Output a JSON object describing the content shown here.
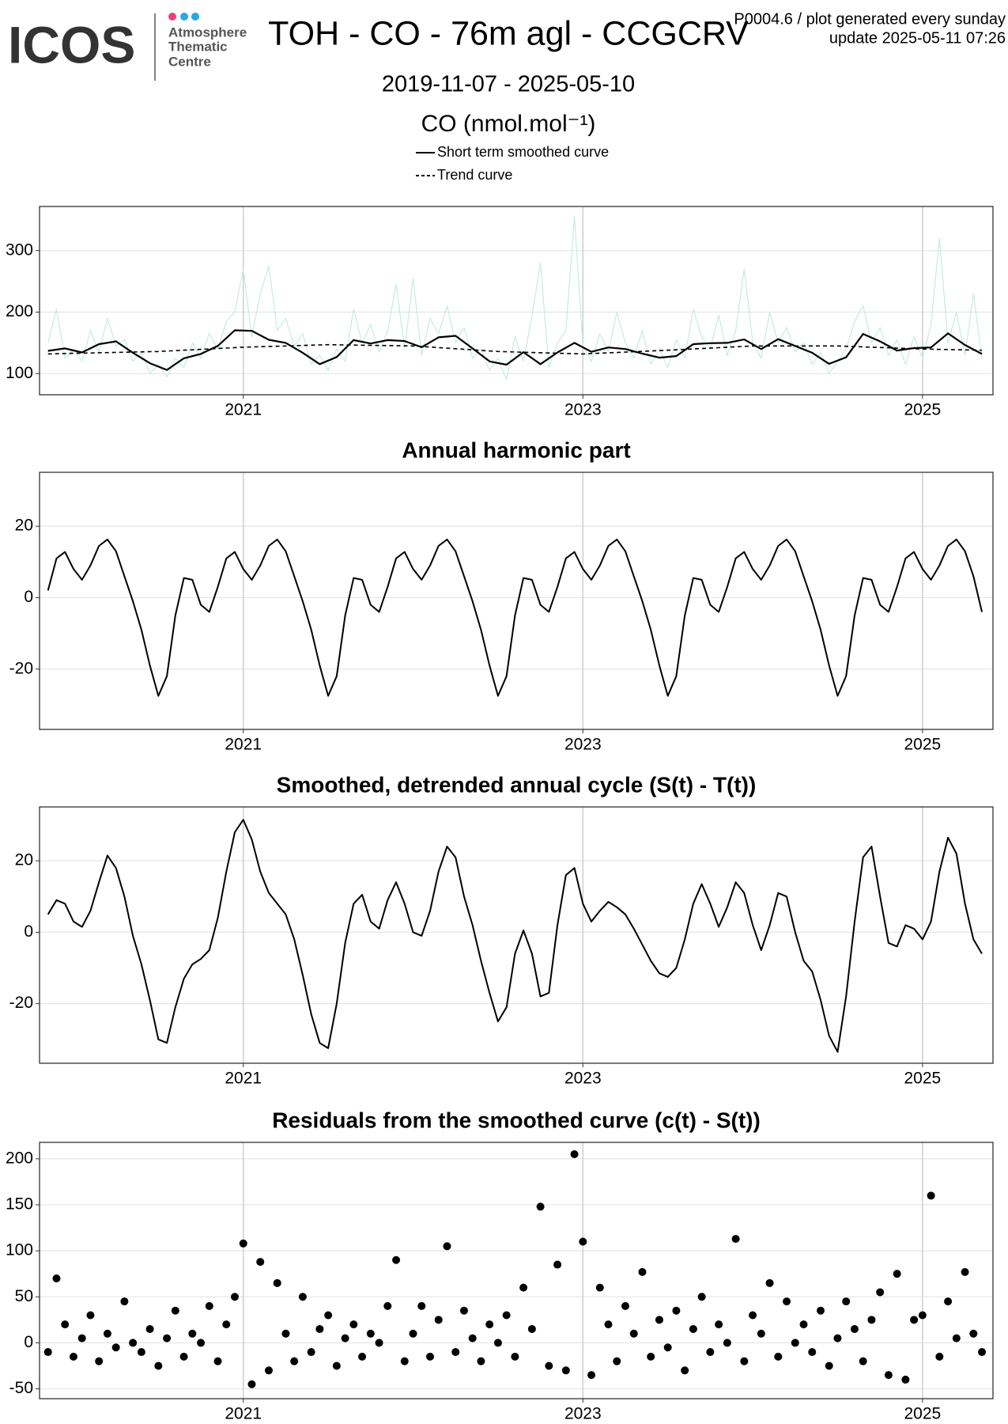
{
  "header": {
    "logo": "ICOS",
    "logo_lines": [
      "Atmosphere",
      "Thematic",
      "Centre"
    ],
    "title": "TOH - CO - 76m agl - CCGCRV",
    "note": "P0004.6 / plot generated every sunday",
    "update": "update  2025-05-11 07:26",
    "date_range": "2019-11-07 - 2025-05-10"
  },
  "chart_data": [
    {
      "type": "line",
      "ylabel": "CO (nmol.mol⁻¹)",
      "xlim": [
        2019.8,
        2025.415
      ],
      "xticks": [
        2021,
        2023,
        2025
      ],
      "ylim": [
        65.7,
        371.6
      ],
      "yticks": [
        100,
        200,
        300
      ],
      "grid": true,
      "series": [
        {
          "color": "#c6ebe4",
          "line_width": 1.2,
          "x": [
            2019.85,
            2019.9,
            2019.95,
            2020.0,
            2020.05,
            2020.1,
            2020.15,
            2020.2,
            2020.25,
            2020.3,
            2020.35,
            2020.4,
            2020.45,
            2020.5,
            2020.55,
            2020.6,
            2020.65,
            2020.7,
            2020.75,
            2020.8,
            2020.85,
            2020.9,
            2020.95,
            2021.0,
            2021.05,
            2021.1,
            2021.15,
            2021.2,
            2021.25,
            2021.3,
            2021.35,
            2021.4,
            2021.45,
            2021.5,
            2021.55,
            2021.6,
            2021.65,
            2021.7,
            2021.75,
            2021.8,
            2021.85,
            2021.9,
            2021.95,
            2022.0,
            2022.05,
            2022.1,
            2022.15,
            2022.2,
            2022.25,
            2022.3,
            2022.35,
            2022.4,
            2022.45,
            2022.5,
            2022.55,
            2022.6,
            2022.65,
            2022.7,
            2022.75,
            2022.8,
            2022.85,
            2022.9,
            2022.95,
            2023.0,
            2023.05,
            2023.1,
            2023.15,
            2023.2,
            2023.25,
            2023.3,
            2023.35,
            2023.4,
            2023.45,
            2023.5,
            2023.55,
            2023.6,
            2023.65,
            2023.7,
            2023.75,
            2023.8,
            2023.85,
            2023.9,
            2023.95,
            2024.0,
            2024.05,
            2024.1,
            2024.15,
            2024.2,
            2024.25,
            2024.3,
            2024.35,
            2024.4,
            2024.45,
            2024.5,
            2024.55,
            2024.6,
            2024.65,
            2024.7,
            2024.75,
            2024.8,
            2024.85,
            2024.9,
            2024.95,
            2025.0,
            2025.05,
            2025.1,
            2025.15,
            2025.2,
            2025.25,
            2025.3,
            2025.35
          ],
          "values": [
            150,
            205,
            125,
            140,
            120,
            170,
            135,
            190,
            145,
            155,
            120,
            135,
            100,
            115,
            95,
            125,
            110,
            150,
            125,
            165,
            140,
            185,
            200,
            270,
            160,
            230,
            275,
            170,
            190,
            145,
            165,
            115,
            130,
            105,
            140,
            120,
            205,
            150,
            180,
            135,
            170,
            245,
            140,
            255,
            130,
            190,
            165,
            210,
            150,
            175,
            125,
            140,
            105,
            125,
            90,
            160,
            120,
            195,
            280,
            110,
            150,
            170,
            355,
            145,
            120,
            165,
            135,
            200,
            150,
            125,
            170,
            115,
            140,
            110,
            155,
            125,
            205,
            160,
            140,
            195,
            130,
            170,
            270,
            150,
            125,
            200,
            150,
            175,
            135,
            150,
            115,
            135,
            100,
            120,
            140,
            185,
            210,
            150,
            175,
            130,
            155,
            115,
            160,
            125,
            180,
            320,
            150,
            200,
            130,
            230,
            125
          ]
        },
        {
          "name": "Short term smoothed curve",
          "color": "#000000",
          "line_width": 2.2,
          "x": [
            2019.85,
            2019.95,
            2020.05,
            2020.15,
            2020.25,
            2020.35,
            2020.45,
            2020.55,
            2020.65,
            2020.75,
            2020.85,
            2020.95,
            2021.05,
            2021.15,
            2021.25,
            2021.35,
            2021.45,
            2021.55,
            2021.65,
            2021.75,
            2021.85,
            2021.95,
            2022.05,
            2022.15,
            2022.25,
            2022.35,
            2022.45,
            2022.55,
            2022.65,
            2022.75,
            2022.85,
            2022.95,
            2023.05,
            2023.15,
            2023.25,
            2023.35,
            2023.45,
            2023.55,
            2023.65,
            2023.75,
            2023.85,
            2023.95,
            2024.05,
            2024.15,
            2024.25,
            2024.35,
            2024.45,
            2024.55,
            2024.65,
            2024.75,
            2024.85,
            2024.95,
            2025.05,
            2025.15,
            2025.25,
            2025.35
          ],
          "values": [
            137,
            141,
            134.5,
            148,
            152.5,
            134,
            117,
            106,
            125,
            132,
            145,
            170.5,
            169.5,
            155,
            150,
            134,
            115.5,
            127,
            154.5,
            149,
            154.5,
            153,
            143,
            159,
            161.5,
            141,
            120,
            114.5,
            135,
            115.5,
            134.5,
            150,
            135.5,
            142.5,
            140,
            132.5,
            126,
            128.5,
            148,
            149.5,
            150,
            155.5,
            140,
            156,
            145,
            134,
            116,
            126.5,
            164.5,
            152.5,
            137.5,
            141.5,
            142.5,
            165.5,
            146.5,
            132
          ]
        },
        {
          "name": "Trend curve",
          "color": "#000000",
          "line_width": 1.6,
          "line_style": "dashed",
          "x": [
            2019.85,
            2020.0,
            2020.5,
            2021.0,
            2021.5,
            2022.0,
            2022.5,
            2023.0,
            2023.5,
            2024.0,
            2024.5,
            2025.0,
            2025.35
          ],
          "values": [
            132,
            133,
            136,
            143,
            147,
            145,
            136,
            132,
            138,
            145,
            145,
            140,
            138
          ]
        }
      ]
    },
    {
      "type": "line",
      "title": "Annual harmonic part",
      "color": "#000000",
      "xlim": [
        2019.8,
        2025.415
      ],
      "xticks": [
        2021,
        2023,
        2025
      ],
      "ylim": [
        -36.9,
        35.1
      ],
      "yticks": [
        -20,
        0,
        20
      ],
      "grid": true,
      "x": [
        2019.85,
        2019.9,
        2019.95,
        2020.0,
        2020.05,
        2020.1,
        2020.15,
        2020.2,
        2020.25,
        2020.3,
        2020.35,
        2020.4,
        2020.45,
        2020.5,
        2020.55,
        2020.6,
        2020.65,
        2020.7,
        2020.75,
        2020.8,
        2020.85,
        2020.9,
        2020.95,
        2021.0,
        2021.05,
        2021.1,
        2021.15,
        2021.2,
        2021.25,
        2021.3,
        2021.35,
        2021.4,
        2021.45,
        2021.5,
        2021.55,
        2021.6,
        2021.65,
        2021.7,
        2021.75,
        2021.8,
        2021.85,
        2021.9,
        2021.95,
        2022.0,
        2022.05,
        2022.1,
        2022.15,
        2022.2,
        2022.25,
        2022.3,
        2022.35,
        2022.4,
        2022.45,
        2022.5,
        2022.55,
        2022.6,
        2022.65,
        2022.7,
        2022.75,
        2022.8,
        2022.85,
        2022.9,
        2022.95,
        2023.0,
        2023.05,
        2023.1,
        2023.15,
        2023.2,
        2023.25,
        2023.3,
        2023.35,
        2023.4,
        2023.45,
        2023.5,
        2023.55,
        2023.6,
        2023.65,
        2023.7,
        2023.75,
        2023.8,
        2023.85,
        2023.9,
        2023.95,
        2024.0,
        2024.05,
        2024.1,
        2024.15,
        2024.2,
        2024.25,
        2024.3,
        2024.35,
        2024.4,
        2024.45,
        2024.5,
        2024.55,
        2024.6,
        2024.65,
        2024.7,
        2024.75,
        2024.8,
        2024.85,
        2024.9,
        2024.95,
        2025.0,
        2025.05,
        2025.1,
        2025.15,
        2025.2,
        2025.25,
        2025.3,
        2025.35
      ],
      "values": [
        2,
        11,
        12.8,
        8,
        5,
        9,
        14.5,
        16.3,
        13,
        6,
        -1,
        -9,
        -19,
        -27.5,
        -22,
        -5,
        5.5,
        5,
        -2,
        -4,
        3,
        11,
        12.8,
        8,
        5,
        9,
        14.5,
        16.3,
        13,
        6,
        -1,
        -9,
        -19,
        -27.5,
        -22,
        -5,
        5.5,
        5,
        -2,
        -4,
        3,
        11,
        12.8,
        8,
        5,
        9,
        14.5,
        16.3,
        13,
        6,
        -1,
        -9,
        -19,
        -27.5,
        -22,
        -5,
        5.5,
        5,
        -2,
        -4,
        3,
        11,
        12.8,
        8,
        5,
        9,
        14.5,
        16.3,
        13,
        6,
        -1,
        -9,
        -19,
        -27.5,
        -22,
        -5,
        5.5,
        5,
        -2,
        -4,
        3,
        11,
        12.8,
        8,
        5,
        9,
        14.5,
        16.3,
        13,
        6,
        -1,
        -9,
        -19,
        -27.5,
        -22,
        -5,
        5.5,
        5,
        -2,
        -4,
        3,
        11,
        12.8,
        8,
        5,
        9,
        14.5,
        16.3,
        13,
        6,
        -4
      ]
    },
    {
      "type": "line",
      "title": "Smoothed, detrended annual cycle (S(t) - T(t))",
      "color": "#000000",
      "xlim": [
        2019.8,
        2025.415
      ],
      "xticks": [
        2021,
        2023,
        2025
      ],
      "ylim": [
        -36.7,
        35.1
      ],
      "yticks": [
        -20,
        0,
        20
      ],
      "grid": true,
      "x": [
        2019.85,
        2019.9,
        2019.95,
        2020.0,
        2020.05,
        2020.1,
        2020.15,
        2020.2,
        2020.25,
        2020.3,
        2020.35,
        2020.4,
        2020.45,
        2020.5,
        2020.55,
        2020.6,
        2020.65,
        2020.7,
        2020.75,
        2020.8,
        2020.85,
        2020.9,
        2020.95,
        2021.0,
        2021.05,
        2021.1,
        2021.15,
        2021.2,
        2021.25,
        2021.3,
        2021.35,
        2021.4,
        2021.45,
        2021.5,
        2021.55,
        2021.6,
        2021.65,
        2021.7,
        2021.75,
        2021.8,
        2021.85,
        2021.9,
        2021.95,
        2022.0,
        2022.05,
        2022.1,
        2022.15,
        2022.2,
        2022.25,
        2022.3,
        2022.35,
        2022.4,
        2022.45,
        2022.5,
        2022.55,
        2022.6,
        2022.65,
        2022.7,
        2022.75,
        2022.8,
        2022.85,
        2022.9,
        2022.95,
        2023.0,
        2023.05,
        2023.1,
        2023.15,
        2023.2,
        2023.25,
        2023.3,
        2023.35,
        2023.4,
        2023.45,
        2023.5,
        2023.55,
        2023.6,
        2023.65,
        2023.7,
        2023.75,
        2023.8,
        2023.85,
        2023.9,
        2023.95,
        2024.0,
        2024.05,
        2024.1,
        2024.15,
        2024.2,
        2024.25,
        2024.3,
        2024.35,
        2024.4,
        2024.45,
        2024.5,
        2024.55,
        2024.6,
        2024.65,
        2024.7,
        2024.75,
        2024.8,
        2024.85,
        2024.9,
        2024.95,
        2025.0,
        2025.05,
        2025.1,
        2025.15,
        2025.2,
        2025.25,
        2025.3,
        2025.35
      ],
      "values": [
        5,
        9,
        8,
        3,
        1.5,
        6,
        14,
        21.5,
        18,
        10,
        -1,
        -9,
        -19,
        -30,
        -31,
        -21,
        -13,
        -9,
        -7.5,
        -5,
        4,
        17,
        28,
        31.5,
        26,
        17,
        11,
        8,
        5,
        -2,
        -12,
        -23,
        -31,
        -32.5,
        -20,
        -3,
        8,
        10.5,
        3,
        1,
        9,
        14,
        8,
        0,
        -1,
        6,
        17,
        24,
        21,
        10,
        2,
        -8,
        -17,
        -25,
        -21,
        -6,
        0.5,
        -6,
        -18,
        -17,
        2,
        16,
        18,
        8,
        3,
        6,
        8.5,
        7,
        5,
        1,
        -3.5,
        -8,
        -11.5,
        -12.5,
        -10,
        -2,
        8,
        13.5,
        8,
        1.5,
        7,
        14,
        11,
        2,
        -5,
        2,
        11,
        10,
        0,
        -8,
        -11,
        -19,
        -29,
        -33.5,
        -18,
        3,
        21,
        24,
        10,
        -3,
        -4,
        2,
        1,
        -2,
        3,
        17,
        26.5,
        22,
        8,
        -2,
        -6
      ]
    },
    {
      "type": "scatter",
      "title": "Residuals from the smoothed curve (c(t) - S(t))",
      "color": "#000000",
      "xlim": [
        2019.8,
        2025.415
      ],
      "xticks": [
        2021,
        2023,
        2025
      ],
      "ylim": [
        -60.7,
        217.9
      ],
      "yticks": [
        -50,
        0,
        50,
        100,
        150,
        200
      ],
      "grid": true,
      "x": [
        2019.85,
        2019.9,
        2019.95,
        2020.0,
        2020.05,
        2020.1,
        2020.15,
        2020.2,
        2020.25,
        2020.3,
        2020.35,
        2020.4,
        2020.45,
        2020.5,
        2020.55,
        2020.6,
        2020.65,
        2020.7,
        2020.75,
        2020.8,
        2020.85,
        2020.9,
        2020.95,
        2021.0,
        2021.05,
        2021.1,
        2021.15,
        2021.2,
        2021.25,
        2021.3,
        2021.35,
        2021.4,
        2021.45,
        2021.5,
        2021.55,
        2021.6,
        2021.65,
        2021.7,
        2021.75,
        2021.8,
        2021.85,
        2021.9,
        2021.95,
        2022.0,
        2022.05,
        2022.1,
        2022.15,
        2022.2,
        2022.25,
        2022.3,
        2022.35,
        2022.4,
        2022.45,
        2022.5,
        2022.55,
        2022.6,
        2022.65,
        2022.7,
        2022.75,
        2022.8,
        2022.85,
        2022.9,
        2022.95,
        2023.0,
        2023.05,
        2023.1,
        2023.15,
        2023.2,
        2023.25,
        2023.3,
        2023.35,
        2023.4,
        2023.45,
        2023.5,
        2023.55,
        2023.6,
        2023.65,
        2023.7,
        2023.75,
        2023.8,
        2023.85,
        2023.9,
        2023.95,
        2024.0,
        2024.05,
        2024.1,
        2024.15,
        2024.2,
        2024.25,
        2024.3,
        2024.35,
        2024.4,
        2024.45,
        2024.5,
        2024.55,
        2024.6,
        2024.65,
        2024.7,
        2024.75,
        2024.8,
        2024.85,
        2024.9,
        2024.95,
        2025.0,
        2025.05,
        2025.1,
        2025.15,
        2025.2,
        2025.25,
        2025.3,
        2025.35
      ],
      "values": [
        -10,
        70,
        20,
        -15,
        5,
        30,
        -20,
        10,
        -5,
        45,
        0,
        -10,
        15,
        -25,
        5,
        35,
        -15,
        10,
        0,
        40,
        -20,
        20,
        50,
        108,
        -45,
        88,
        -30,
        65,
        10,
        -20,
        50,
        -10,
        15,
        30,
        -25,
        5,
        20,
        -15,
        10,
        0,
        40,
        90,
        -20,
        10,
        40,
        -15,
        25,
        105,
        -10,
        35,
        5,
        -20,
        20,
        0,
        30,
        -15,
        60,
        15,
        148,
        -25,
        85,
        -30,
        205,
        110,
        -35,
        60,
        20,
        -20,
        40,
        10,
        77,
        -15,
        25,
        -5,
        35,
        -30,
        15,
        50,
        -10,
        20,
        0,
        113,
        -20,
        30,
        10,
        65,
        -15,
        45,
        0,
        20,
        -10,
        35,
        -25,
        5,
        45,
        15,
        -20,
        25,
        55,
        -35,
        75,
        -40,
        25,
        30,
        160,
        -15,
        45,
        5,
        77,
        10,
        -10
      ]
    }
  ]
}
